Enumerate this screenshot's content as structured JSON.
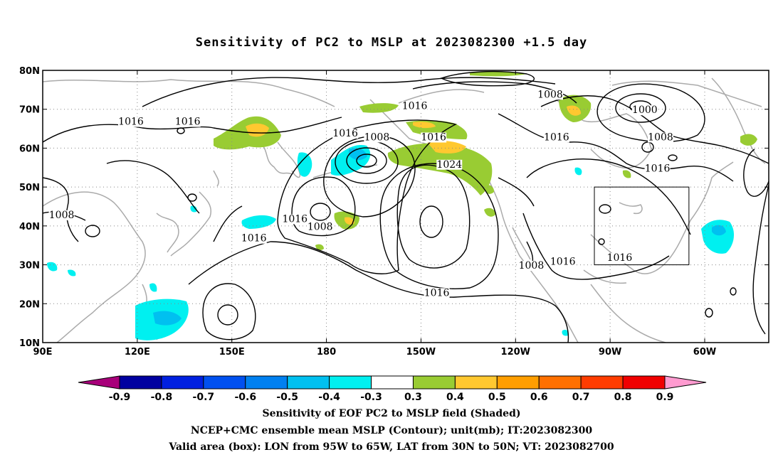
{
  "title": "Sensitivity of PC2 to MSLP at 2023082300 +1.5 day",
  "map": {
    "lon_range": [
      90,
      290
    ],
    "lat_range": [
      10,
      80
    ],
    "lon_ticks": [
      {
        "value": 90,
        "label": "90E"
      },
      {
        "value": 120,
        "label": "120E"
      },
      {
        "value": 150,
        "label": "150E"
      },
      {
        "value": 180,
        "label": "180"
      },
      {
        "value": 210,
        "label": "150W"
      },
      {
        "value": 240,
        "label": "120W"
      },
      {
        "value": 270,
        "label": "90W"
      },
      {
        "value": 300,
        "label": "60W"
      }
    ],
    "lat_ticks": [
      {
        "value": 10,
        "label": "10N"
      },
      {
        "value": 20,
        "label": "20N"
      },
      {
        "value": 30,
        "label": "30N"
      },
      {
        "value": 40,
        "label": "40N"
      },
      {
        "value": 50,
        "label": "50N"
      },
      {
        "value": 60,
        "label": "60N"
      },
      {
        "value": 70,
        "label": "70N"
      },
      {
        "value": 80,
        "label": "80N"
      }
    ],
    "valid_box": {
      "lon": [
        265,
        295
      ],
      "lat": [
        30,
        50
      ]
    },
    "contour_labels": [
      {
        "text": "1016",
        "lon": 118,
        "lat": 66
      },
      {
        "text": "1016",
        "lon": 136,
        "lat": 66
      },
      {
        "text": "1008",
        "lon": 96,
        "lat": 42
      },
      {
        "text": "1016",
        "lon": 170,
        "lat": 41
      },
      {
        "text": "1016",
        "lon": 157,
        "lat": 36
      },
      {
        "text": "1008",
        "lon": 178,
        "lat": 39
      },
      {
        "text": "1016",
        "lon": 186,
        "lat": 63
      },
      {
        "text": "1008",
        "lon": 196,
        "lat": 62
      },
      {
        "text": "1016",
        "lon": 208,
        "lat": 70
      },
      {
        "text": "1016",
        "lon": 214,
        "lat": 62
      },
      {
        "text": "1024",
        "lon": 219,
        "lat": 55
      },
      {
        "text": "1016",
        "lon": 215,
        "lat": 22
      },
      {
        "text": "1008",
        "lon": 251,
        "lat": 73
      },
      {
        "text": "1016",
        "lon": 253,
        "lat": 62
      },
      {
        "text": "1000",
        "lon": 281,
        "lat": 69
      },
      {
        "text": "1008",
        "lon": 286,
        "lat": 62
      },
      {
        "text": "1016",
        "lon": 285,
        "lat": 54
      },
      {
        "text": "1008",
        "lon": 245,
        "lat": 29
      },
      {
        "text": "1016",
        "lon": 255,
        "lat": 30
      },
      {
        "text": "1016",
        "lon": 273,
        "lat": 31
      }
    ]
  },
  "colorbar": {
    "colors": [
      "#a8007a",
      "#0000a0",
      "#0020e0",
      "#0050f0",
      "#0080f0",
      "#00c0f0",
      "#00f0f0",
      "#ffffff",
      "#99cc33",
      "#ffc830",
      "#ff9e00",
      "#ff7000",
      "#ff3c00",
      "#f00000",
      "#ff9bd0"
    ],
    "labels": [
      "-0.9",
      "-0.8",
      "-0.7",
      "-0.6",
      "-0.5",
      "-0.4",
      "-0.3",
      "0.3",
      "0.4",
      "0.5",
      "0.6",
      "0.7",
      "0.8",
      "0.9"
    ]
  },
  "captions": {
    "line1": "Sensitivity of EOF PC2 to MSLP field (Shaded)",
    "line2": "NCEP+CMC ensemble mean MSLP (Contour); unit(mb); IT:2023082300",
    "line3": "Valid area (box): LON from 95W to 65W, LAT from 30N to 50N; VT: 2023082700"
  }
}
